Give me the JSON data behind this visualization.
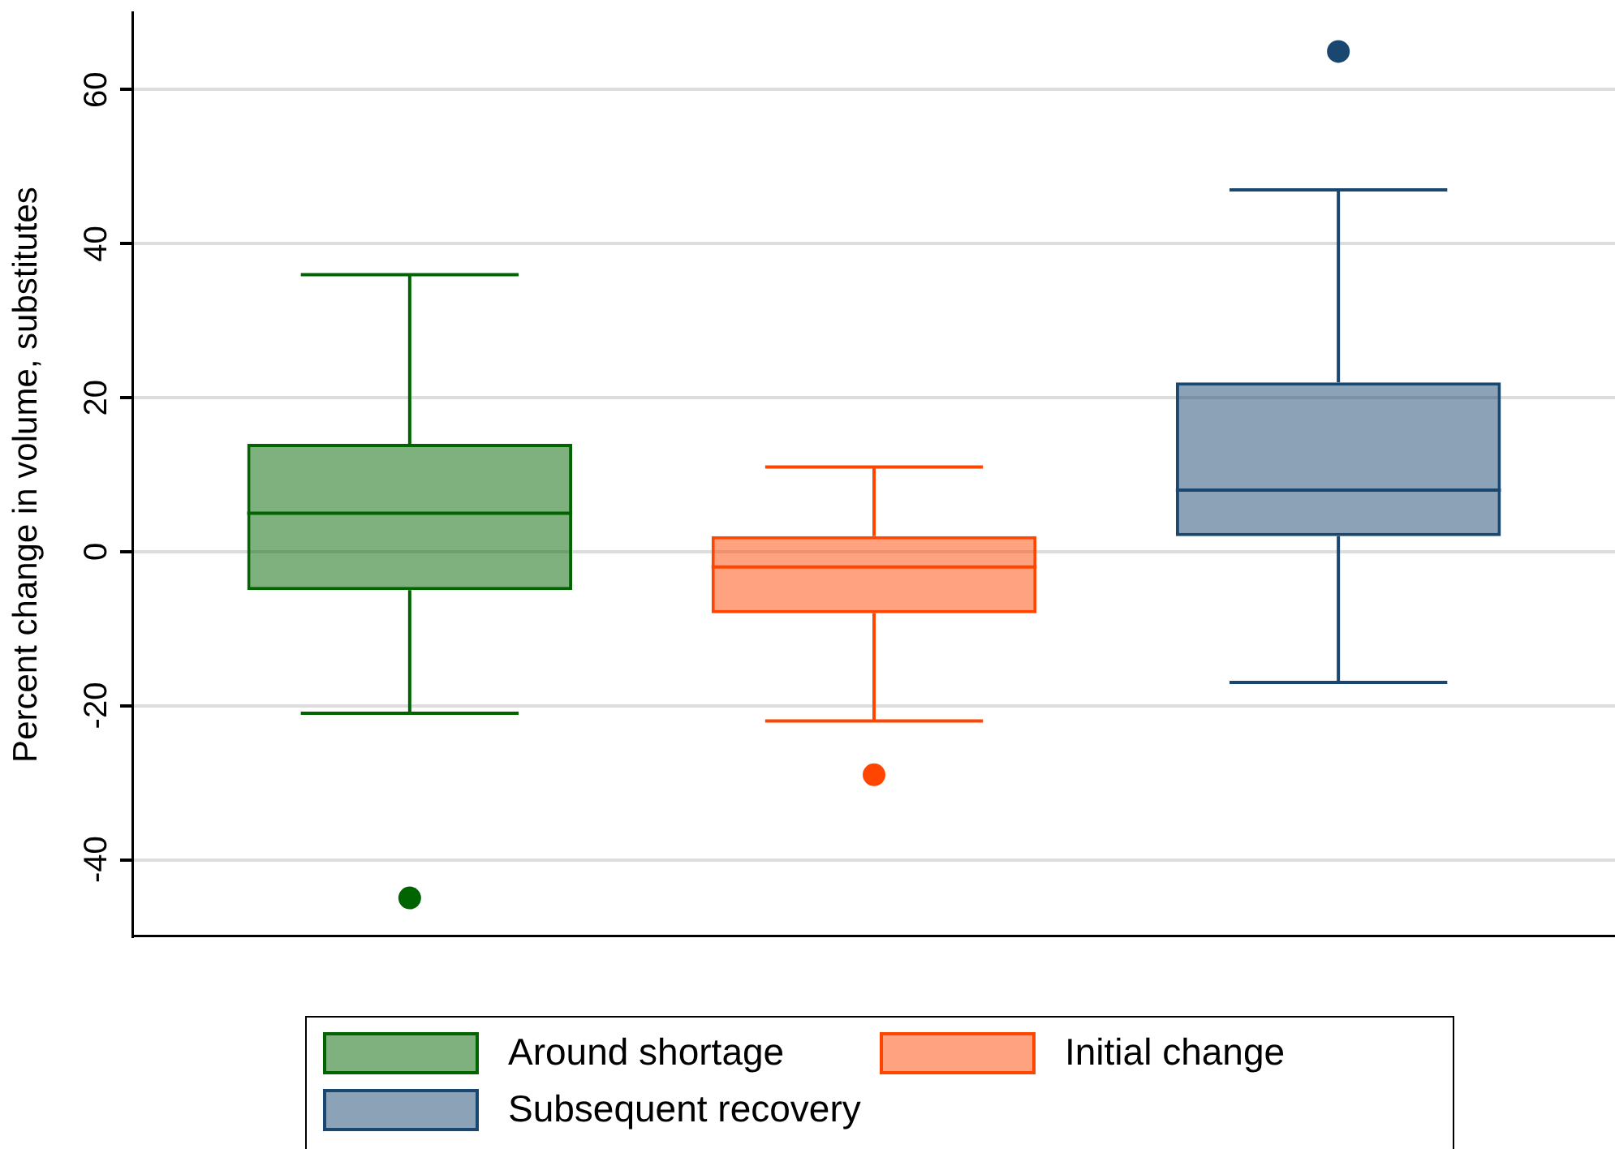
{
  "chart_data": {
    "type": "box",
    "ylabel": "Percent change in volume, substitutes",
    "categories": [
      null
    ],
    "ylim": [
      -50,
      70
    ],
    "yticks": [
      -40,
      -20,
      0,
      20,
      40,
      60
    ],
    "grid": "y",
    "legend": "bottom",
    "series": [
      {
        "name": "Around shortage",
        "color": "#006400",
        "boxes": [
          {
            "low": -21,
            "q1": -5,
            "median": 5,
            "q3": 14,
            "high": 36,
            "outliers": [
              -45
            ]
          }
        ]
      },
      {
        "name": "Initial change",
        "color": "#ff4500",
        "boxes": [
          {
            "low": -22,
            "q1": -8,
            "median": -2,
            "q3": 2,
            "high": 11,
            "outliers": [
              -29
            ]
          }
        ]
      },
      {
        "name": "Subsequent recovery",
        "color": "#1a476f",
        "boxes": [
          {
            "low": -17,
            "q1": 2,
            "median": 8,
            "q3": 22,
            "high": 47,
            "outliers": [
              65
            ]
          }
        ]
      }
    ]
  }
}
